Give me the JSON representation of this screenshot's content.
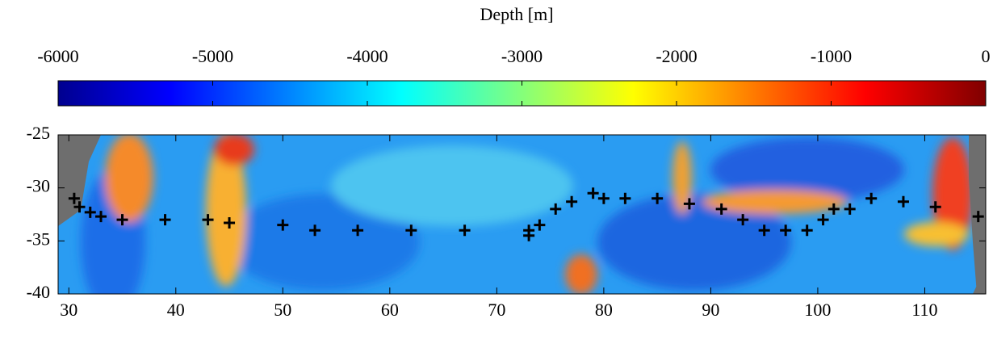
{
  "chart_data": {
    "type": "scatter",
    "title": "Depth [m]",
    "colorbar": {
      "lim": [
        -6000,
        0
      ],
      "ticks": [
        -6000,
        -5000,
        -4000,
        -3000,
        -2000,
        -1000,
        0
      ]
    },
    "x": [
      30.5,
      31,
      32,
      33,
      35,
      39,
      43,
      45,
      50,
      53,
      57,
      62,
      67,
      73,
      73,
      74,
      75.5,
      77,
      79,
      80,
      82,
      85,
      88,
      91,
      93,
      95,
      97,
      99,
      100.5,
      101.5,
      103,
      105,
      108,
      111,
      115
    ],
    "values": [
      -31,
      -31.8,
      -32.3,
      -32.7,
      -33,
      -33,
      -33,
      -33.3,
      -33.5,
      -34,
      -34,
      -34,
      -34,
      -34,
      -34.5,
      -33.5,
      -32,
      -31.3,
      -30.5,
      -31,
      -31,
      -31,
      -31.5,
      -32,
      -33,
      -34,
      -34,
      -34,
      -33,
      -32,
      -32,
      -31,
      -31.3,
      -31.8,
      -32.7
    ],
    "color": "#000000",
    "marker": "+",
    "xlim": [
      29,
      115.7
    ],
    "ylim": [
      -40,
      -25
    ],
    "xticks": [
      30,
      40,
      50,
      60,
      70,
      80,
      90,
      100,
      110
    ],
    "yticks": [
      -40,
      -35,
      -30,
      -25
    ]
  }
}
